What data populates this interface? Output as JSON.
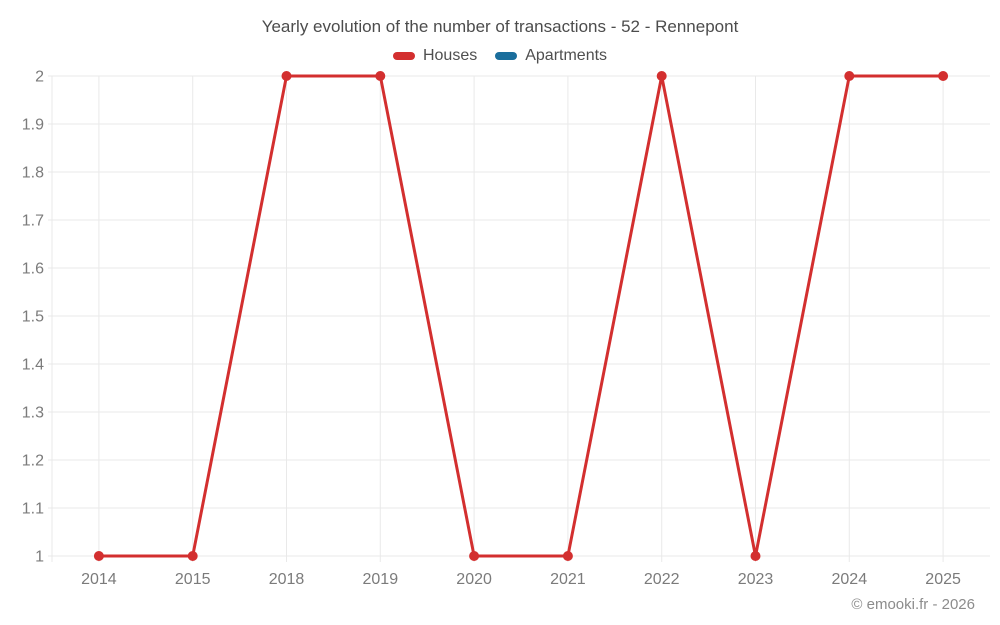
{
  "header": {
    "title": "Yearly evolution of the number of transactions - 52 - Rennepont"
  },
  "legend": {
    "items": [
      {
        "label": "Houses",
        "color": "#d32f2f"
      },
      {
        "label": "Apartments",
        "color": "#1a6e9c"
      }
    ]
  },
  "footer": {
    "copyright": "© emooki.fr - 2026"
  },
  "colors": {
    "houses": "#d32f2f",
    "apartments": "#1a6e9c",
    "grid": "#e9e9e9",
    "axis_text": "#7b7b7b",
    "title_text": "#4c4c4c"
  },
  "chart_data": {
    "type": "line",
    "title": "Yearly evolution of the number of transactions - 52 - Rennepont",
    "categories": [
      "2014",
      "2015",
      "2018",
      "2019",
      "2020",
      "2021",
      "2022",
      "2023",
      "2024",
      "2025"
    ],
    "series": [
      {
        "name": "Houses",
        "color": "#d32f2f",
        "values": [
          1,
          1,
          2,
          2,
          1,
          1,
          2,
          1,
          2,
          2
        ]
      },
      {
        "name": "Apartments",
        "color": "#1a6e9c",
        "values": []
      }
    ],
    "xlabel": "",
    "ylabel": "",
    "ylim": [
      1,
      2
    ],
    "ytick_labels": [
      "1",
      "1.1",
      "1.2",
      "1.3",
      "1.4",
      "1.5",
      "1.6",
      "1.7",
      "1.8",
      "1.9",
      "2"
    ],
    "grid": true,
    "legend_position": "top",
    "marker_radius": 5,
    "line_width": 3
  }
}
